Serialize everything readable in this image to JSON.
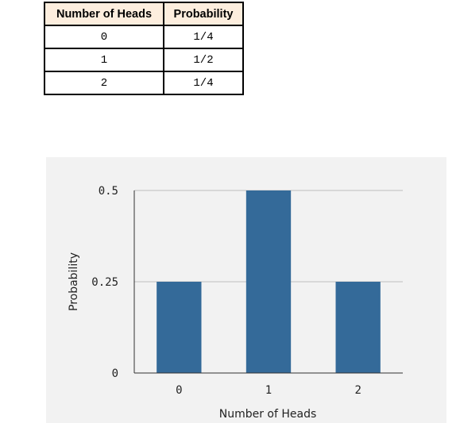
{
  "table": {
    "headers": [
      "Number of Heads",
      "Probability"
    ],
    "rows": [
      [
        "0",
        "1/4"
      ],
      [
        "1",
        "1/2"
      ],
      [
        "2",
        "1/4"
      ]
    ]
  },
  "chart_data": {
    "type": "bar",
    "categories": [
      "0",
      "1",
      "2"
    ],
    "values": [
      0.25,
      0.5,
      0.25
    ],
    "title": "",
    "xlabel": "Number of Heads",
    "ylabel": "Probability",
    "ylim": [
      0,
      0.5
    ],
    "yticks": [
      0,
      0.25,
      0.5
    ],
    "ytick_labels": [
      "0",
      "0.25",
      "0.5"
    ],
    "grid": true,
    "bar_color": "#346a99"
  }
}
